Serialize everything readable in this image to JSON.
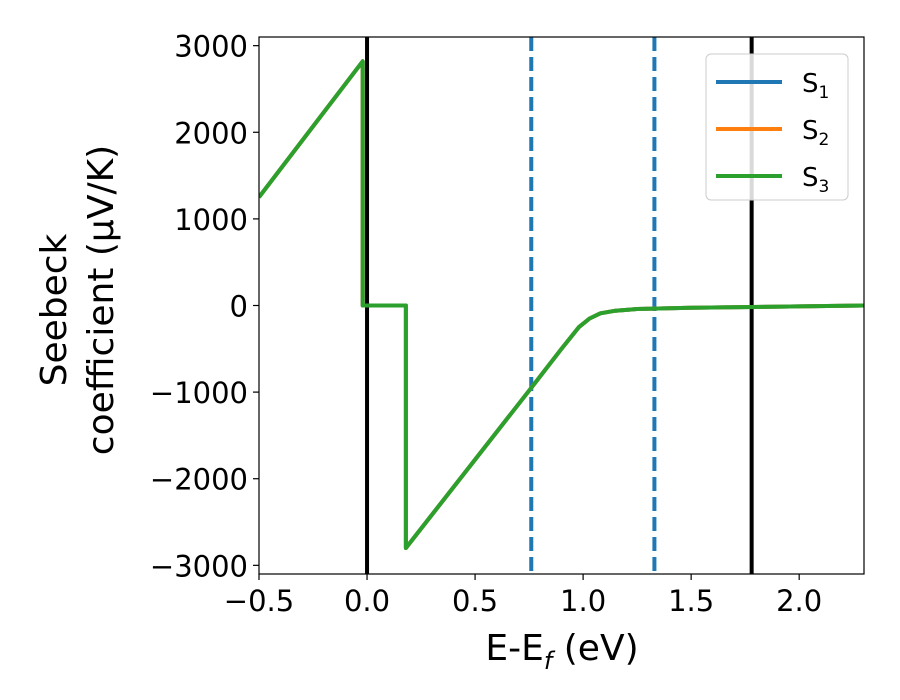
{
  "chart_data": {
    "type": "line",
    "xlabel": "E-E",
    "xlabel_sub": "f",
    "xlabel_unit": " (eV)",
    "ylabel_line1": "Seebeck",
    "ylabel_line2": "coefficient  (μV/K)",
    "xlim": [
      -0.5,
      2.3
    ],
    "ylim": [
      -3100,
      3100
    ],
    "xticks": [
      -0.5,
      0.0,
      0.5,
      1.0,
      1.5,
      2.0
    ],
    "xtick_labels": [
      "−0.5",
      "0.0",
      "0.5",
      "1.0",
      "1.5",
      "2.0"
    ],
    "yticks": [
      -3000,
      -2000,
      -1000,
      0,
      1000,
      2000,
      3000
    ],
    "ytick_labels": [
      "−3000",
      "−2000",
      "−1000",
      "0",
      "1000",
      "2000",
      "3000"
    ],
    "grid": false,
    "legend_placement": "top-right",
    "series": [
      {
        "name": "S",
        "name_sub": "1",
        "color": "#1f77b4",
        "x": [
          -0.5,
          -0.02,
          -0.02,
          0.18,
          0.18,
          0.76,
          0.9,
          0.98,
          1.03,
          1.08,
          1.15,
          1.25,
          1.5,
          2.0,
          2.3
        ],
        "y": [
          1250,
          2820,
          0,
          0,
          -2800,
          -950,
          -500,
          -250,
          -150,
          -90,
          -60,
          -40,
          -25,
          -10,
          0
        ]
      },
      {
        "name": "S",
        "name_sub": "2",
        "color": "#ff7f0e",
        "x": [
          -0.5,
          -0.02,
          -0.02,
          0.18,
          0.18,
          0.76,
          0.9,
          0.98,
          1.03,
          1.08,
          1.15,
          1.25,
          1.5,
          2.0,
          2.3
        ],
        "y": [
          1250,
          2820,
          0,
          0,
          -2800,
          -950,
          -500,
          -250,
          -150,
          -90,
          -60,
          -40,
          -25,
          -10,
          0
        ]
      },
      {
        "name": "S",
        "name_sub": "3",
        "color": "#2ca02c",
        "x": [
          -0.5,
          -0.02,
          -0.02,
          0.18,
          0.18,
          0.76,
          0.9,
          0.98,
          1.03,
          1.08,
          1.15,
          1.25,
          1.5,
          2.0,
          2.3
        ],
        "y": [
          1250,
          2820,
          0,
          0,
          -2800,
          -950,
          -500,
          -250,
          -150,
          -90,
          -60,
          -40,
          -25,
          -10,
          0
        ]
      }
    ],
    "vertical_lines": [
      {
        "x": 0.0,
        "style": "solid",
        "color": "#000000"
      },
      {
        "x": 0.76,
        "style": "dashed",
        "color": "#1f77b4"
      },
      {
        "x": 1.33,
        "style": "dashed",
        "color": "#1f77b4"
      },
      {
        "x": 1.78,
        "style": "solid",
        "color": "#000000"
      }
    ]
  }
}
